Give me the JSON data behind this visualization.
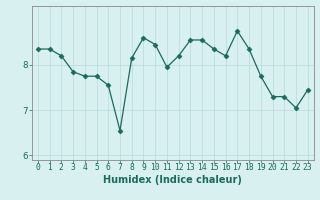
{
  "x": [
    0,
    1,
    2,
    3,
    4,
    5,
    6,
    7,
    8,
    9,
    10,
    11,
    12,
    13,
    14,
    15,
    16,
    17,
    18,
    19,
    20,
    21,
    22,
    23
  ],
  "y": [
    8.35,
    8.35,
    8.2,
    7.85,
    7.75,
    7.75,
    7.55,
    6.55,
    8.15,
    8.6,
    8.45,
    7.95,
    8.2,
    8.55,
    8.55,
    8.35,
    8.2,
    8.75,
    8.35,
    7.75,
    7.3,
    7.3,
    7.05,
    7.45
  ],
  "line_color": "#1a6b5a",
  "marker": "D",
  "marker_size": 2.5,
  "bg_color": "#d8f0f0",
  "grid_color": "#b8dada",
  "xlabel": "Humidex (Indice chaleur)",
  "ylim": [
    5.9,
    9.3
  ],
  "xlim": [
    -0.5,
    23.5
  ],
  "yticks": [
    6,
    7,
    8
  ],
  "xticks": [
    0,
    1,
    2,
    3,
    4,
    5,
    6,
    7,
    8,
    9,
    10,
    11,
    12,
    13,
    14,
    15,
    16,
    17,
    18,
    19,
    20,
    21,
    22,
    23
  ],
  "axis_fontsize": 6.5,
  "tick_fontsize": 5.8,
  "xlabel_fontsize": 7.0
}
